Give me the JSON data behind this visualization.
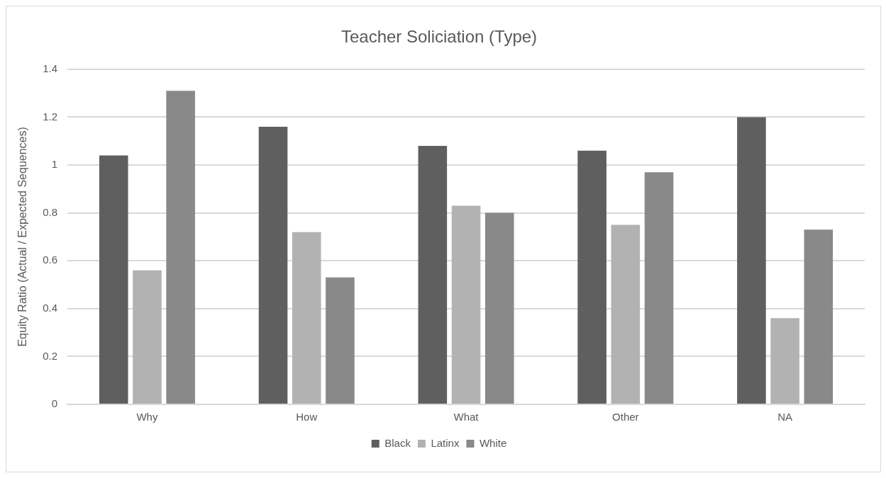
{
  "chart_data": {
    "type": "bar",
    "title": "Teacher Soliciation (Type)",
    "ylabel": "Equity Ratio (Actual / Expected Sequences)",
    "categories": [
      "Why",
      "How",
      "What",
      "Other",
      "NA"
    ],
    "series": [
      {
        "name": "Black",
        "color": "#5f5f5f",
        "values": [
          1.04,
          1.16,
          1.08,
          1.06,
          1.2
        ]
      },
      {
        "name": "Latinx",
        "color": "#b2b2b2",
        "values": [
          0.56,
          0.72,
          0.83,
          0.75,
          0.36
        ]
      },
      {
        "name": "White",
        "color": "#898989",
        "values": [
          1.31,
          0.53,
          0.8,
          0.97,
          0.73
        ]
      }
    ],
    "ylim": [
      0,
      1.4
    ],
    "yticks": [
      0,
      0.2,
      0.4,
      0.6,
      0.8,
      1,
      1.2,
      1.4
    ],
    "grid": "y",
    "legend": "bottom"
  }
}
